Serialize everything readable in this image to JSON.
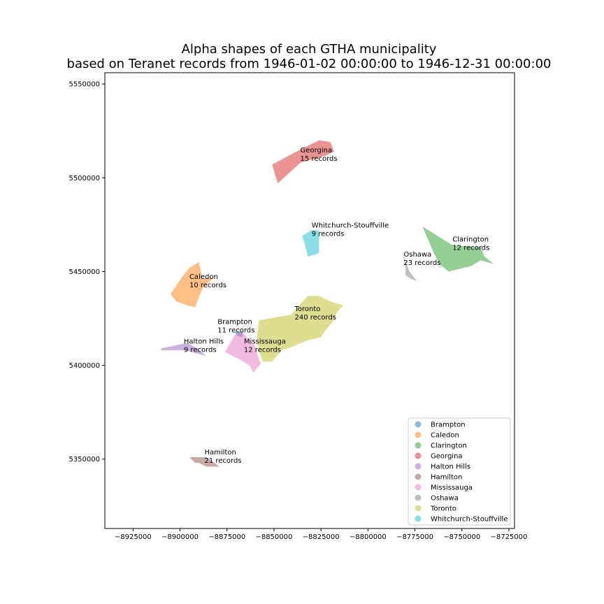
{
  "chart_data": {
    "type": "map",
    "title_lines": [
      "Alpha shapes of each GTHA municipality",
      "based on Teranet records from 1946-01-02 00:00:00 to 1946-12-31 00:00:00"
    ],
    "xlim": [
      -8940000,
      -8722000
    ],
    "ylim": [
      5313000,
      5556000
    ],
    "x_ticks": [
      -8925000,
      -8900000,
      -8875000,
      -8850000,
      -8825000,
      -8800000,
      -8775000,
      -8750000,
      -8725000
    ],
    "x_tick_labels": [
      "−8925000",
      "−8900000",
      "−8875000",
      "−8850000",
      "−8825000",
      "−8800000",
      "−8775000",
      "−8750000",
      "−8725000"
    ],
    "y_ticks": [
      5350000,
      5400000,
      5450000,
      5500000,
      5550000
    ],
    "y_tick_labels": [
      "5350000",
      "5400000",
      "5450000",
      "5500000",
      "5550000"
    ],
    "legend_position": "lower-right",
    "regions": [
      {
        "name": "Brampton",
        "color": "#1f77b4",
        "label": "Brampton",
        "records": "11 records",
        "label_at": [
          -8880000,
          5422000
        ],
        "polygon": [
          [
            -8871000,
            5418000
          ],
          [
            -8866500,
            5418000
          ],
          [
            -8867000,
            5415000
          ],
          [
            -8870000,
            5416000
          ]
        ]
      },
      {
        "name": "Caledon",
        "color": "#ff7f0e",
        "label": "Caledon",
        "records": "10 records",
        "label_at": [
          -8895000,
          5446000
        ],
        "polygon": [
          [
            -8890000,
            5455000
          ],
          [
            -8888000,
            5446000
          ],
          [
            -8882000,
            5447000
          ],
          [
            -8888000,
            5441000
          ],
          [
            -8892000,
            5431000
          ],
          [
            -8896000,
            5432000
          ],
          [
            -8902000,
            5434000
          ],
          [
            -8905000,
            5438000
          ],
          [
            -8899000,
            5447000
          ],
          [
            -8895000,
            5452000
          ]
        ]
      },
      {
        "name": "Clarington",
        "color": "#2ca02c",
        "label": "Clarington",
        "records": "12 records",
        "label_at": [
          -8755000,
          5466000
        ],
        "polygon": [
          [
            -8771000,
            5474000
          ],
          [
            -8755000,
            5464000
          ],
          [
            -8740000,
            5463000
          ],
          [
            -8738000,
            5458000
          ],
          [
            -8733000,
            5454000
          ],
          [
            -8740000,
            5456000
          ],
          [
            -8745000,
            5453000
          ],
          [
            -8757000,
            5450000
          ],
          [
            -8762000,
            5454000
          ],
          [
            -8765000,
            5460000
          ]
        ]
      },
      {
        "name": "Georgina",
        "color": "#d62728",
        "label": "Georgina",
        "records": "15 records",
        "label_at": [
          -8836000,
          5513500
        ],
        "polygon": [
          [
            -8851000,
            5507000
          ],
          [
            -8838000,
            5514000
          ],
          [
            -8826000,
            5520000
          ],
          [
            -8820000,
            5519000
          ],
          [
            -8818000,
            5514000
          ],
          [
            -8822000,
            5512000
          ],
          [
            -8836000,
            5508000
          ],
          [
            -8848000,
            5497000
          ]
        ]
      },
      {
        "name": "Halton Hills",
        "color": "#9467bd",
        "label": "Halton Hills",
        "records": "9 records",
        "label_at": [
          -8898000,
          5411500
        ],
        "polygon": [
          [
            -8910000,
            5409000
          ],
          [
            -8896000,
            5412000
          ],
          [
            -8891000,
            5409000
          ],
          [
            -8886000,
            5405000
          ],
          [
            -8897000,
            5408000
          ],
          [
            -8910000,
            5408000
          ]
        ]
      },
      {
        "name": "Hamilton",
        "color": "#8c564b",
        "label": "Hamilton",
        "records": "21 records",
        "label_at": [
          -8887000,
          5352500
        ],
        "polygon": [
          [
            -8895000,
            5351000
          ],
          [
            -8886000,
            5351000
          ],
          [
            -8879000,
            5346000
          ],
          [
            -8886000,
            5346000
          ],
          [
            -8890000,
            5348000
          ],
          [
            -8892000,
            5348000
          ]
        ]
      },
      {
        "name": "Mississauga",
        "color": "#e377c2",
        "label": "Mississauga",
        "records": "12 records",
        "label_at": [
          -8866000,
          5411500
        ],
        "polygon": [
          [
            -8867000,
            5418000
          ],
          [
            -8860000,
            5410000
          ],
          [
            -8858000,
            5403000
          ],
          [
            -8857000,
            5401000
          ],
          [
            -8861000,
            5396000
          ],
          [
            -8863000,
            5400000
          ],
          [
            -8868000,
            5403000
          ],
          [
            -8876000,
            5407000
          ],
          [
            -8871000,
            5416000
          ]
        ]
      },
      {
        "name": "Oshawa",
        "color": "#7f7f7f",
        "label": "Oshawa",
        "records": "23 records",
        "label_at": [
          -8781000,
          5458000
        ],
        "polygon": [
          [
            -8782000,
            5461000
          ],
          [
            -8778000,
            5450000
          ],
          [
            -8774000,
            5445000
          ],
          [
            -8777000,
            5446000
          ],
          [
            -8780000,
            5448000
          ],
          [
            -8780000,
            5453000
          ]
        ]
      },
      {
        "name": "Toronto",
        "color": "#bcbd22",
        "label": "Toronto",
        "records": "240 records",
        "label_at": [
          -8839000,
          5429000
        ],
        "polygon": [
          [
            -8858000,
            5424000
          ],
          [
            -8841000,
            5427000
          ],
          [
            -8832000,
            5437000
          ],
          [
            -8826000,
            5437000
          ],
          [
            -8820000,
            5434000
          ],
          [
            -8813000,
            5432000
          ],
          [
            -8816000,
            5429000
          ],
          [
            -8819000,
            5423000
          ],
          [
            -8823000,
            5418000
          ],
          [
            -8825000,
            5415000
          ],
          [
            -8833000,
            5413000
          ],
          [
            -8840000,
            5410000
          ],
          [
            -8846000,
            5408000
          ],
          [
            -8851000,
            5402000
          ],
          [
            -8856000,
            5402000
          ],
          [
            -8858000,
            5408000
          ],
          [
            -8859000,
            5415000
          ]
        ]
      },
      {
        "name": "Whitchurch-Stouffville",
        "color": "#17becf",
        "label": "Whitchurch-Stouffville",
        "records": "9 records",
        "label_at": [
          -8830000,
          5473500
        ],
        "polygon": [
          [
            -8835000,
            5469000
          ],
          [
            -8830000,
            5472000
          ],
          [
            -8826000,
            5472000
          ],
          [
            -8826000,
            5460000
          ],
          [
            -8828000,
            5459000
          ],
          [
            -8832000,
            5458000
          ],
          [
            -8834000,
            5466000
          ]
        ]
      }
    ]
  }
}
